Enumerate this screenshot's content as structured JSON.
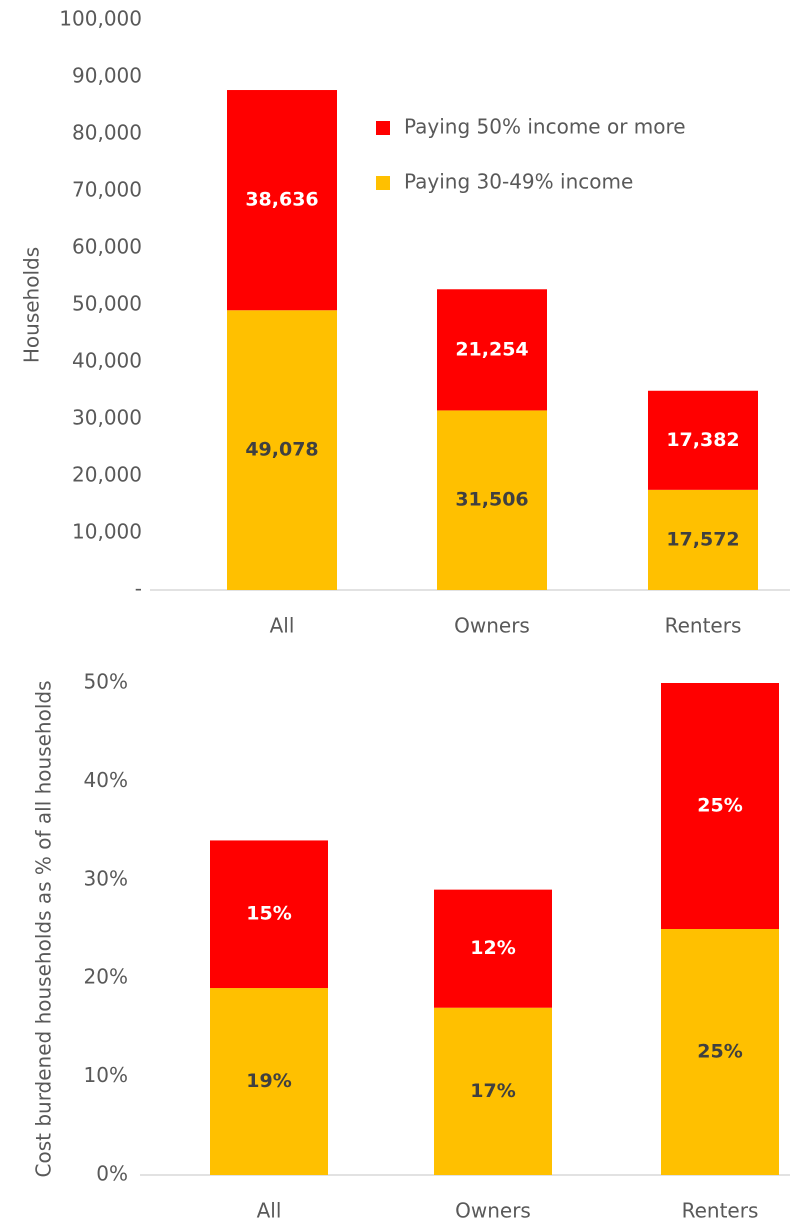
{
  "chart_data": [
    {
      "type": "bar",
      "stacked": true,
      "y_label": "Households",
      "categories": [
        "All",
        "Owners",
        "Renters"
      ],
      "series": [
        {
          "name": "Paying 30-49% income",
          "color": "#FFC000",
          "values": [
            49078,
            31506,
            17572
          ],
          "value_labels": [
            "49,078",
            "31,506",
            "17,572"
          ]
        },
        {
          "name": "Paying 50% income or more",
          "color": "#FF0000",
          "values": [
            38636,
            21254,
            17382
          ],
          "value_labels": [
            "38,636",
            "21,254",
            "17,382"
          ]
        }
      ],
      "ylim": [
        0,
        100000
      ],
      "yticks": [
        {
          "value": 0,
          "label": "-"
        },
        {
          "value": 10000,
          "label": "10,000"
        },
        {
          "value": 20000,
          "label": "20,000"
        },
        {
          "value": 30000,
          "label": "30,000"
        },
        {
          "value": 40000,
          "label": "40,000"
        },
        {
          "value": 50000,
          "label": "50,000"
        },
        {
          "value": 60000,
          "label": "60,000"
        },
        {
          "value": 70000,
          "label": "70,000"
        },
        {
          "value": 80000,
          "label": "80,000"
        },
        {
          "value": 90000,
          "label": "90,000"
        },
        {
          "value": 100000,
          "label": "100,000"
        }
      ],
      "legend": "upper right"
    },
    {
      "type": "bar",
      "stacked": true,
      "y_label": "Cost burdened households as % of all households",
      "categories": [
        "All",
        "Owners",
        "Renters"
      ],
      "series": [
        {
          "color": "#FFC000",
          "values": [
            19,
            17,
            25
          ],
          "value_labels": [
            "19%",
            "17%",
            "25%"
          ]
        },
        {
          "color": "#FF0000",
          "values": [
            15,
            12,
            25
          ],
          "value_labels": [
            "15%",
            "12%",
            "25%"
          ]
        }
      ],
      "ylim": [
        0,
        50
      ],
      "yticks": [
        {
          "value": 0,
          "label": "0%"
        },
        {
          "value": 10,
          "label": "10%"
        },
        {
          "value": 20,
          "label": "20%"
        },
        {
          "value": 30,
          "label": "30%"
        },
        {
          "value": 40,
          "label": "40%"
        },
        {
          "value": 50,
          "label": "50%"
        }
      ]
    }
  ]
}
